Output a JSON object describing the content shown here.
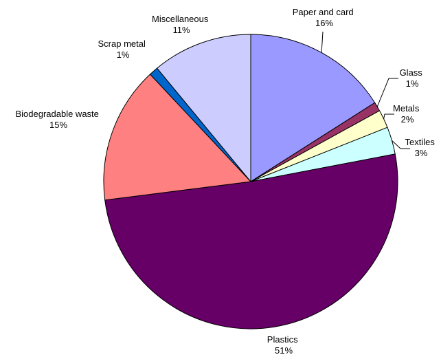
{
  "chart_data": {
    "type": "pie",
    "title": "",
    "start_angle_deg": 0,
    "direction": "clockwise",
    "slices": [
      {
        "label": "Paper and card",
        "value": 16,
        "value_label": "16%",
        "color": "#9999ff"
      },
      {
        "label": "Glass",
        "value": 1,
        "value_label": "1%",
        "color": "#993366"
      },
      {
        "label": "Metals",
        "value": 2,
        "value_label": "2%",
        "color": "#ffffcc"
      },
      {
        "label": "Textiles",
        "value": 3,
        "value_label": "3%",
        "color": "#ccffff"
      },
      {
        "label": "Plastics",
        "value": 51,
        "value_label": "51%",
        "color": "#660066"
      },
      {
        "label": "Biodegradable waste",
        "value": 15,
        "value_label": "15%",
        "color": "#ff8080"
      },
      {
        "label": "Scrap metal",
        "value": 1,
        "value_label": "1%",
        "color": "#0066cc"
      },
      {
        "label": "Miscellaneous",
        "value": 11,
        "value_label": "11%",
        "color": "#ccccff"
      }
    ]
  }
}
